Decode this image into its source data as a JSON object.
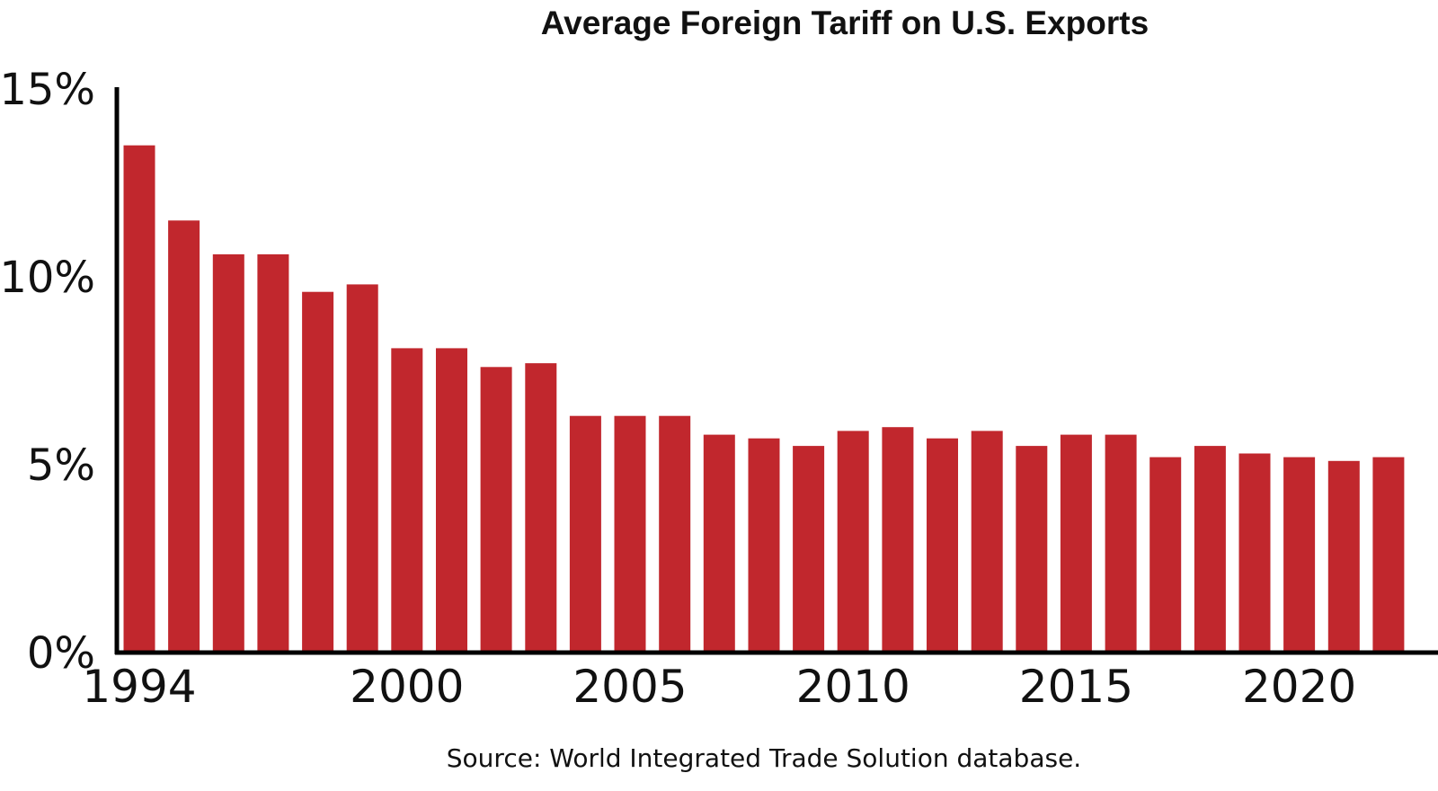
{
  "chart_data": {
    "type": "bar",
    "title": "Average Foreign Tariff on U.S. Exports",
    "xlabel": "",
    "ylabel": "",
    "ylim": [
      0,
      15
    ],
    "y_ticks": [
      0,
      5,
      10,
      15
    ],
    "y_tick_labels": [
      "0%",
      "5%",
      "10%",
      "15%"
    ],
    "x_tick_labels": [
      "1994",
      "2000",
      "2005",
      "2010",
      "2015",
      "2020"
    ],
    "grid": false,
    "legend": "none",
    "bar_color": "#c1272d",
    "categories": [
      "1994",
      "1995",
      "1996",
      "1997",
      "1998",
      "1999",
      "2000",
      "2001",
      "2002",
      "2003",
      "2004",
      "2005",
      "2006",
      "2007",
      "2008",
      "2009",
      "2010",
      "2011",
      "2012",
      "2013",
      "2014",
      "2015",
      "2016",
      "2017",
      "2018",
      "2019",
      "2020",
      "2021",
      "2022"
    ],
    "values": [
      13.5,
      11.5,
      10.6,
      10.6,
      9.6,
      9.8,
      8.1,
      8.1,
      7.6,
      7.7,
      6.3,
      6.3,
      6.3,
      5.8,
      5.7,
      5.5,
      5.9,
      6.0,
      5.7,
      5.9,
      5.5,
      5.8,
      5.8,
      5.2,
      5.5,
      5.3,
      5.2,
      5.1,
      5.2
    ],
    "unit": "%",
    "source": "Source: World Integrated Trade Solution database."
  }
}
